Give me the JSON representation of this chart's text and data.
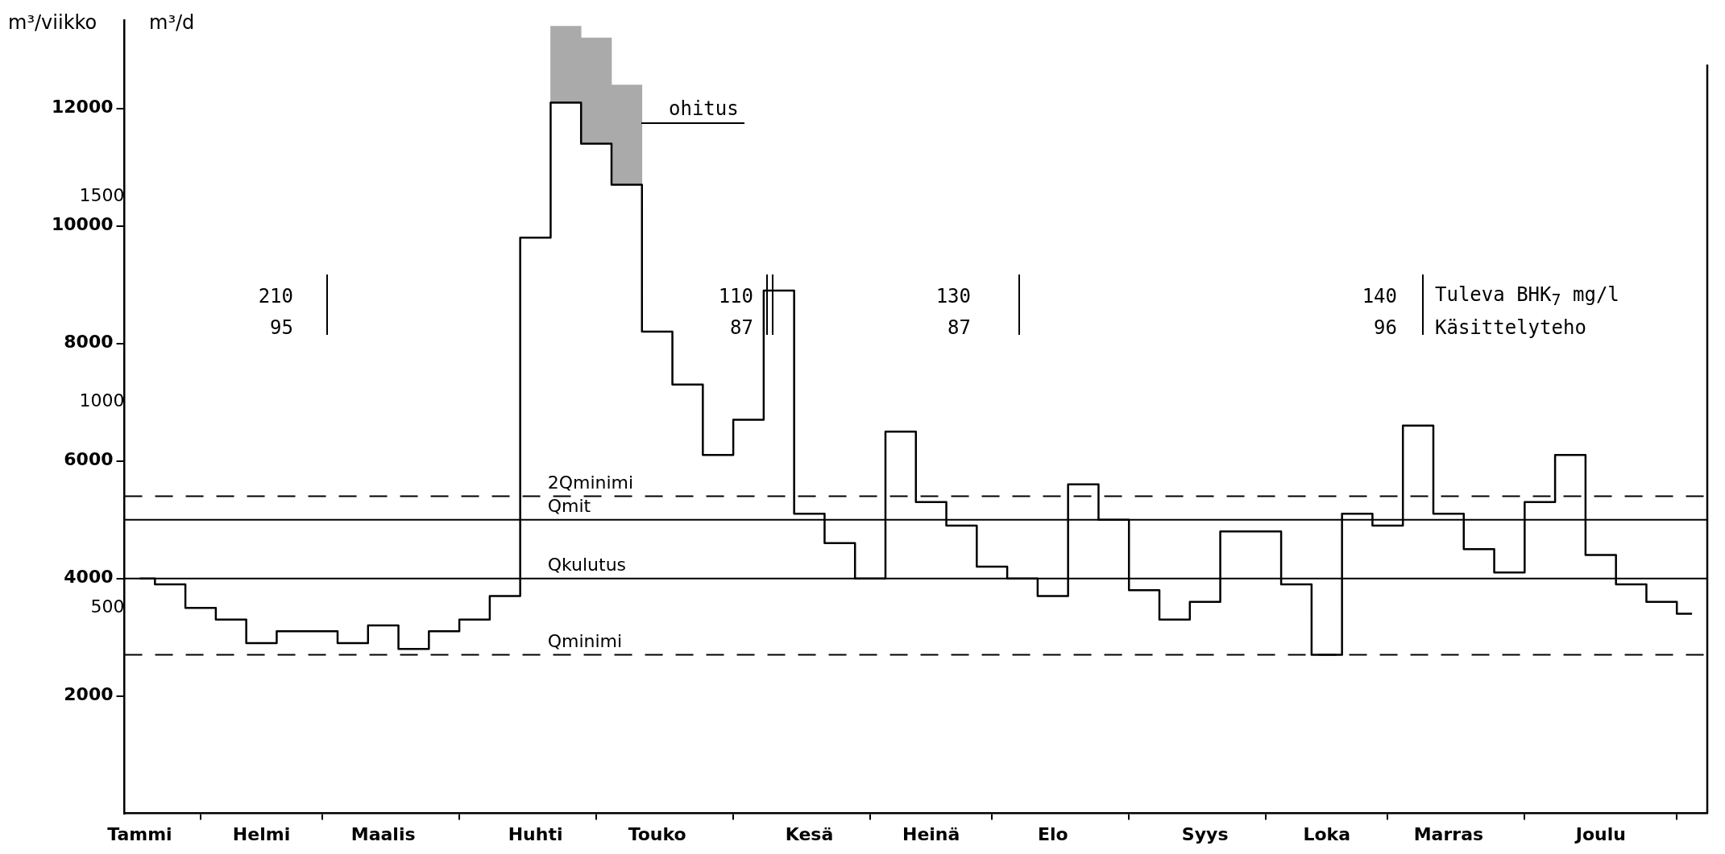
{
  "chart_data": {
    "type": "step",
    "ylabel": "m³/viikko",
    "y2label": "m³/d",
    "categories": [
      "Tammi",
      null,
      null,
      null,
      "Helmi",
      null,
      null,
      null,
      "Maalis",
      null,
      null,
      null,
      null,
      "Huhti",
      null,
      null,
      null,
      "Touko",
      null,
      null,
      null,
      null,
      "Kesä",
      null,
      null,
      null,
      "Heinä",
      null,
      null,
      null,
      "Elo",
      null,
      null,
      null,
      null,
      "Syys",
      null,
      null,
      null,
      "Loka",
      null,
      null,
      null,
      "Marras",
      null,
      null,
      null,
      null,
      "Joulu",
      null,
      null,
      null
    ],
    "ylim": [
      0,
      13500
    ],
    "yticks": [
      2000,
      4000,
      6000,
      8000,
      10000,
      12000
    ],
    "y2lim": [
      0,
      1928.6
    ],
    "y2ticks": [
      500,
      1000,
      1500
    ],
    "series": [
      {
        "color": "#000000",
        "values": [
          4000,
          3900,
          3500,
          3300,
          2900,
          3100,
          3100,
          2900,
          3200,
          2800,
          3100,
          3300,
          3700,
          9800,
          12100,
          11400,
          10700,
          8200,
          7300,
          6100,
          6700,
          8900,
          5100,
          4600,
          4000,
          6500,
          5300,
          4900,
          4200,
          4000,
          3700,
          5600,
          5000,
          3800,
          3300,
          3600,
          4800,
          4800,
          3900,
          2700,
          5100,
          4900,
          6600,
          5100,
          4500,
          4100,
          5300,
          6100,
          4400,
          3900,
          3600,
          3400
        ]
      },
      {
        "type": "bar",
        "color": "#aaaaaa",
        "base": [
          null,
          null,
          null,
          null,
          null,
          null,
          null,
          null,
          null,
          null,
          null,
          null,
          null,
          null,
          12100,
          11400,
          10700,
          null,
          null,
          null,
          null,
          null,
          null,
          null,
          null,
          null,
          null,
          null,
          null,
          null,
          null,
          null,
          null,
          null,
          null,
          null,
          null,
          null,
          null,
          null,
          null,
          null,
          null,
          null,
          null,
          null,
          null,
          null,
          null,
          null,
          null,
          null
        ],
        "values": [
          null,
          null,
          null,
          null,
          null,
          null,
          null,
          null,
          null,
          null,
          null,
          null,
          null,
          null,
          1300,
          1800,
          1700,
          null,
          null,
          null,
          null,
          null,
          null,
          null,
          null,
          null,
          null,
          null,
          null,
          null,
          null,
          null,
          null,
          null,
          null,
          null,
          null,
          null,
          null,
          null,
          null,
          null,
          null,
          null,
          null,
          null,
          null,
          null,
          null,
          null,
          null,
          null
        ]
      }
    ],
    "ref_lines": [
      {
        "axis": "y",
        "value": 5400,
        "label": "2Qminimi",
        "line_style": "dashed",
        "color": "#000000"
      },
      {
        "axis": "y",
        "value": 5000,
        "label": "Qmit",
        "line_style": "solid",
        "color": "#000000"
      },
      {
        "axis": "y",
        "value": 4000,
        "label": "Qkulutus",
        "line_style": "solid",
        "color": "#000000"
      },
      {
        "axis": "y",
        "value": 2700,
        "label": "Qminimi",
        "line_style": "dashed",
        "color": "#000000"
      }
    ],
    "annotations": [
      "210",
      "95",
      "110",
      "87",
      "130",
      "87",
      "140",
      "96",
      "Tuleva BHK$_{7}$ mg/l",
      "Käsittelyteho",
      "ohitus"
    ],
    "legend": false,
    "grid": false
  }
}
